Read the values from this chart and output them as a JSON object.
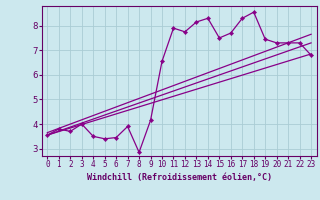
{
  "xlabel": "Windchill (Refroidissement éolien,°C)",
  "background_color": "#cce8ee",
  "grid_color": "#aaccd4",
  "line_color": "#880088",
  "tick_color": "#660066",
  "xlim": [
    -0.5,
    23.5
  ],
  "ylim": [
    2.7,
    8.8
  ],
  "xticks": [
    0,
    1,
    2,
    3,
    4,
    5,
    6,
    7,
    8,
    9,
    10,
    11,
    12,
    13,
    14,
    15,
    16,
    17,
    18,
    19,
    20,
    21,
    22,
    23
  ],
  "yticks": [
    3,
    4,
    5,
    6,
    7,
    8
  ],
  "main_x": [
    0,
    1,
    2,
    3,
    4,
    5,
    6,
    7,
    8,
    9,
    10,
    11,
    12,
    13,
    14,
    15,
    16,
    17,
    18,
    19,
    20,
    21,
    22,
    23
  ],
  "main_y": [
    3.55,
    3.8,
    3.7,
    4.0,
    3.5,
    3.4,
    3.45,
    3.9,
    2.85,
    4.15,
    6.55,
    7.9,
    7.75,
    8.15,
    8.3,
    7.5,
    7.7,
    8.3,
    8.55,
    7.45,
    7.3,
    7.3,
    7.3,
    6.8
  ],
  "line1_x": [
    0,
    23
  ],
  "line1_y": [
    3.55,
    7.3
  ],
  "line2_x": [
    0,
    23
  ],
  "line2_y": [
    3.55,
    6.85
  ],
  "line3_x": [
    0,
    23
  ],
  "line3_y": [
    3.65,
    7.65
  ]
}
